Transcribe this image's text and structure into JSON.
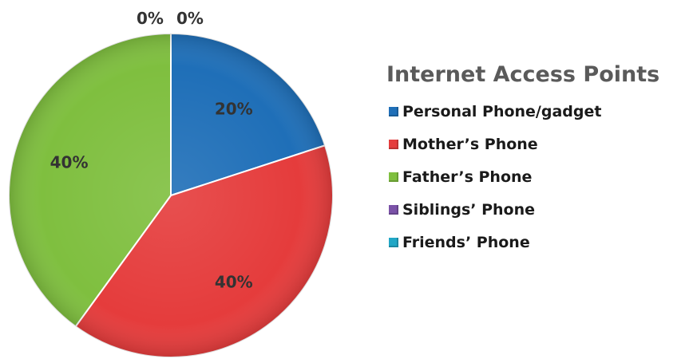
{
  "chart_data": {
    "type": "pie",
    "title": "Internet Access Points",
    "categories": [
      "Personal Phone/gadget",
      "Mother’s Phone",
      "Father’s Phone",
      "Siblings’ Phone",
      "Friends’ Phone"
    ],
    "values": [
      20,
      40,
      40,
      0,
      0
    ],
    "value_labels": [
      "20%",
      "40%",
      "40%",
      "0%",
      "0%"
    ],
    "colors": [
      "#1f6fb8",
      "#e53c3c",
      "#7fbf3f",
      "#7b52a8",
      "#21a7c6"
    ],
    "legend_position": "right",
    "start_angle": "12 o'clock",
    "direction": "clockwise"
  }
}
